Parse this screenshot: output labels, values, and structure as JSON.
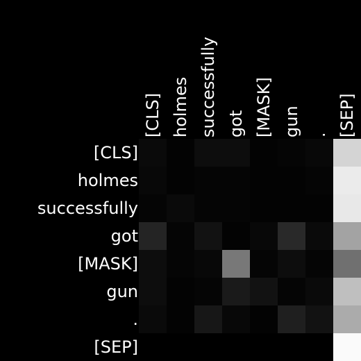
{
  "chart_data": {
    "type": "heatmap",
    "title": "",
    "xlabel": "",
    "ylabel": "",
    "x_tokens": [
      "[CLS]",
      "holmes",
      "successfully",
      "got",
      "[MASK]",
      "gun",
      ".",
      "[SEP]"
    ],
    "y_tokens": [
      "[CLS]",
      "holmes",
      "successfully",
      "got",
      "[MASK]",
      "gun",
      ".",
      "[SEP]"
    ],
    "colormap": "grayscale (black = 0, white = 1)",
    "value_range": [
      0,
      1
    ],
    "values": [
      [
        0.04,
        0.01,
        0.05,
        0.05,
        0.01,
        0.02,
        0.03,
        0.83
      ],
      [
        0.03,
        0.01,
        0.02,
        0.02,
        0.01,
        0.01,
        0.02,
        0.92
      ],
      [
        0.02,
        0.04,
        0.02,
        0.02,
        0.01,
        0.01,
        0.01,
        0.91
      ],
      [
        0.14,
        0.02,
        0.07,
        0.01,
        0.03,
        0.16,
        0.04,
        0.64
      ],
      [
        0.05,
        0.02,
        0.03,
        0.47,
        0.02,
        0.05,
        0.02,
        0.44
      ],
      [
        0.05,
        0.01,
        0.02,
        0.1,
        0.07,
        0.02,
        0.04,
        0.75
      ],
      [
        0.04,
        0.01,
        0.09,
        0.03,
        0.01,
        0.12,
        0.07,
        0.67
      ],
      [
        0.0,
        0.0,
        0.0,
        0.0,
        0.0,
        0.0,
        0.0,
        0.98
      ]
    ]
  }
}
